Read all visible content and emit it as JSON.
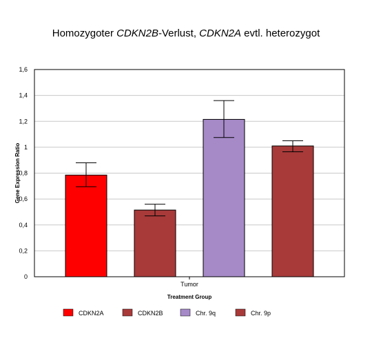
{
  "chart_data": {
    "type": "bar",
    "title_parts": [
      {
        "text": "Homozygoter ",
        "italic": false
      },
      {
        "text": "CDKN2B",
        "italic": true
      },
      {
        "text": "-Verlust, ",
        "italic": false
      },
      {
        "text": "CDKN2A",
        "italic": true
      },
      {
        "text": " evtl. heterozygot",
        "italic": false
      }
    ],
    "xlabel": "Treatment Group",
    "ylabel": "Gene Expression Ratio",
    "categories": [
      "Tumor"
    ],
    "ylim": [
      0,
      1.6
    ],
    "yticks": [
      0,
      0.2,
      0.4,
      0.6,
      0.8,
      1.0,
      1.2,
      1.4,
      1.6
    ],
    "ytick_labels": [
      "0",
      "0,2",
      "0,4",
      "0,6",
      "0,8",
      "1",
      "1,2",
      "1,4",
      "1,6"
    ],
    "grid": true,
    "legend_position": "bottom",
    "series": [
      {
        "name": "CDKN2A",
        "values": [
          0.785
        ],
        "error_low": [
          0.695
        ],
        "error_high": [
          0.88
        ],
        "color": "#ff0000"
      },
      {
        "name": "CDKN2B",
        "values": [
          0.515
        ],
        "error_low": [
          0.47
        ],
        "error_high": [
          0.56
        ],
        "color": "#a83a3a"
      },
      {
        "name": "Chr. 9q",
        "values": [
          1.215
        ],
        "error_low": [
          1.075
        ],
        "error_high": [
          1.36
        ],
        "color": "#a68ac8"
      },
      {
        "name": "Chr. 9p",
        "values": [
          1.01
        ],
        "error_low": [
          0.965
        ],
        "error_high": [
          1.05
        ],
        "color": "#a83a3a"
      }
    ]
  }
}
